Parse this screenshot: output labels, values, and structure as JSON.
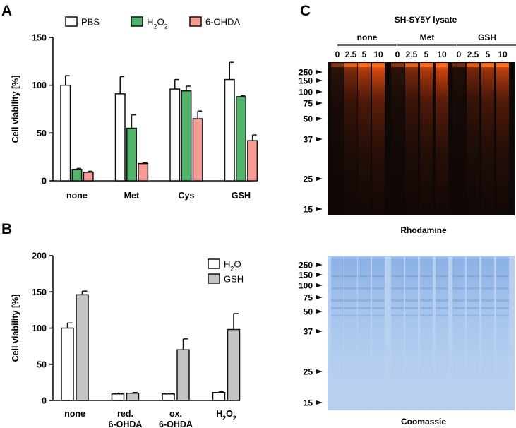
{
  "panels": {
    "a": "A",
    "b": "B",
    "c": "C"
  },
  "chart_data": [
    {
      "type": "bar",
      "ylabel": "Cell viability [%]",
      "ylim": [
        0,
        150
      ],
      "yticks": [
        "0",
        "50",
        "100",
        "150"
      ],
      "categories": [
        "none",
        "Met",
        "Cys",
        "GSH"
      ],
      "series": [
        {
          "name": "PBS",
          "color": "#ffffff",
          "values": [
            100,
            91,
            96,
            106
          ],
          "errors": [
            10,
            18,
            10,
            18
          ]
        },
        {
          "name": "H2O2",
          "name_parts": [
            "H",
            "2",
            "O",
            "2"
          ],
          "color": "#52b36a",
          "values": [
            12,
            55,
            94,
            88
          ],
          "errors": [
            1,
            14,
            5,
            1
          ]
        },
        {
          "name": "6-OHDA",
          "color": "#f49b93",
          "values": [
            9,
            18,
            65,
            42
          ],
          "errors": [
            1,
            1,
            8,
            6
          ]
        }
      ],
      "legend": "top"
    },
    {
      "type": "bar",
      "ylabel": "Cell viability [%]",
      "ylim": [
        0,
        200
      ],
      "yticks": [
        "0",
        "50",
        "100",
        "150",
        "200"
      ],
      "categories": [
        "none",
        "red.\n6-OHDA",
        "ox.\n6-OHDA",
        "H2O2"
      ],
      "category_labels": [
        [
          "none"
        ],
        [
          "red.",
          "6-OHDA"
        ],
        [
          "ox.",
          "6-OHDA"
        ],
        [
          "H2O2"
        ]
      ],
      "series": [
        {
          "name": "H2O",
          "name_parts": [
            "H",
            "2",
            "O"
          ],
          "color": "#ffffff",
          "values": [
            100,
            9,
            9,
            11
          ],
          "errors": [
            7,
            1,
            1,
            1
          ]
        },
        {
          "name": "GSH",
          "color": "#c4c5c3",
          "values": [
            146,
            10,
            70,
            98
          ],
          "errors": [
            5,
            1,
            15,
            22
          ]
        }
      ],
      "legend": "top-right"
    }
  ],
  "gel": {
    "title": "SH-SY5Y lysate",
    "groups": [
      "none",
      "Met",
      "GSH"
    ],
    "concentrations": [
      "0",
      "2.5",
      "5",
      "10"
    ],
    "markers": [
      "250",
      "150",
      "100",
      "75",
      "50",
      "37",
      "25",
      "15"
    ],
    "top_caption": "Rhodamine",
    "bottom_caption": "Coomassie",
    "lane_intensity": [
      0.15,
      0.55,
      0.8,
      1.0,
      0.15,
      0.55,
      0.8,
      0.95,
      0.1,
      0.5,
      0.7,
      0.85
    ],
    "colors": {
      "rhodamine_band": "#ff6a1a",
      "background": "#0e0807",
      "coomassie": "#a9c7ef"
    }
  }
}
